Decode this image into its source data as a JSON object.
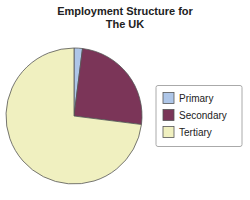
{
  "chart_data": {
    "type": "pie",
    "title": "Employment Structure for\nThe UK",
    "categories": [
      "Primary",
      "Secondary",
      "Tertiary"
    ],
    "values": [
      2,
      25,
      73
    ],
    "colors": [
      "#aec6e8",
      "#7b3558",
      "#f0f0c0"
    ],
    "legend": "right"
  }
}
